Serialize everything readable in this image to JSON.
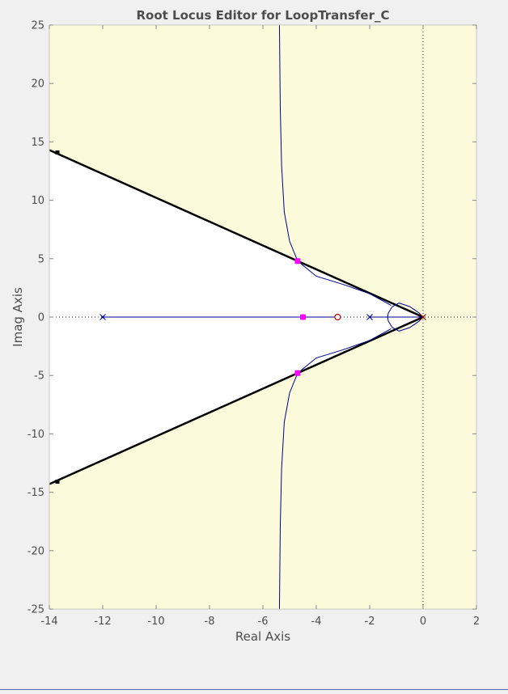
{
  "chart_data": {
    "type": "root-locus",
    "title": "Root Locus Editor for LoopTransfer_C",
    "xlabel": "Real Axis",
    "ylabel": "Imag Axis",
    "xlim": [
      -14,
      2
    ],
    "ylim": [
      -25,
      25
    ],
    "xticks": [
      -14,
      -12,
      -10,
      -8,
      -6,
      -4,
      -2,
      0,
      2
    ],
    "yticks": [
      -25,
      -20,
      -15,
      -10,
      -5,
      0,
      5,
      10,
      15,
      20,
      25
    ],
    "grid": false,
    "colors": {
      "figure_bg": "#f0f0f0",
      "plot_bg": "#fbfbdc",
      "allowed_region": "#ffffff",
      "locus": "#00008b",
      "constraint": "#000000",
      "closed_loop": "#ff00ff",
      "zero": "#cc0000",
      "axis_text": "#4d4d4d"
    },
    "open_loop_poles": [
      {
        "re": 0,
        "im": 0
      },
      {
        "re": -2,
        "im": 0
      },
      {
        "re": -12,
        "im": 0
      }
    ],
    "open_loop_zeros": [
      {
        "re": -3.2,
        "im": 0
      }
    ],
    "closed_loop_poles": [
      {
        "re": -4.5,
        "im": 0
      },
      {
        "re": -4.7,
        "im": 4.8
      },
      {
        "re": -4.7,
        "im": -4.8
      }
    ],
    "damping_constraint": {
      "apex": {
        "re": 0,
        "im": 0
      },
      "upper_end": {
        "re": -14,
        "im": 14.3
      },
      "lower_end": {
        "re": -14,
        "im": -14.3
      }
    },
    "asymptote_re": -5.4,
    "locus_branches": [
      {
        "points": [
          [
            -12,
            0
          ],
          [
            -3.2,
            0
          ]
        ]
      },
      {
        "points": [
          [
            0,
            0
          ],
          [
            -2,
            0
          ]
        ]
      },
      {
        "points": [
          [
            0,
            0
          ],
          [
            -0.15,
            0.35
          ],
          [
            -0.5,
            0.9
          ],
          [
            -0.9,
            1.2
          ],
          [
            -1.15,
            0.9
          ],
          [
            -1.3,
            0.35
          ],
          [
            -1.33,
            0
          ],
          [
            -1.3,
            -0.35
          ],
          [
            -1.15,
            -0.9
          ],
          [
            -0.9,
            -1.2
          ],
          [
            -0.5,
            -0.9
          ],
          [
            -0.15,
            -0.35
          ],
          [
            0,
            0
          ]
        ]
      },
      {
        "points": [
          [
            -1.2,
            1.0
          ],
          [
            -2.0,
            2.0
          ],
          [
            -3.0,
            2.8
          ],
          [
            -4.0,
            3.5
          ],
          [
            -4.7,
            4.8
          ],
          [
            -5.0,
            6.5
          ],
          [
            -5.2,
            9.0
          ],
          [
            -5.3,
            13.0
          ],
          [
            -5.35,
            18.0
          ],
          [
            -5.38,
            25.0
          ]
        ]
      },
      {
        "points": [
          [
            -1.2,
            -1.0
          ],
          [
            -2.0,
            -2.0
          ],
          [
            -3.0,
            -2.8
          ],
          [
            -4.0,
            -3.5
          ],
          [
            -4.7,
            -4.8
          ],
          [
            -5.0,
            -6.5
          ],
          [
            -5.2,
            -9.0
          ],
          [
            -5.3,
            -13.0
          ],
          [
            -5.35,
            -18.0
          ],
          [
            -5.38,
            -25.0
          ]
        ]
      }
    ]
  }
}
